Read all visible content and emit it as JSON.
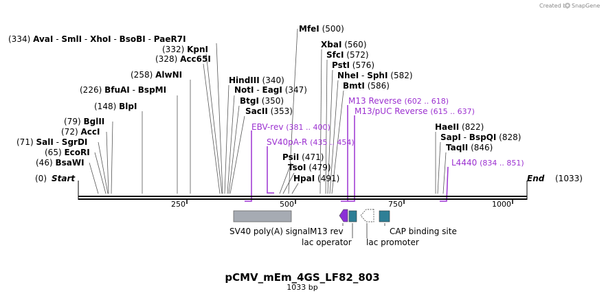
{
  "branding": {
    "created_by": "Created by",
    "app_name": "SnapGene"
  },
  "plasmid": {
    "name": "pCMV_mEm_4GS_LF82_803",
    "size_label": "1033 bp",
    "length_bp": 1033
  },
  "ends": {
    "start_label": "Start",
    "start_pos": "(0)",
    "end_label": "End",
    "end_pos": "(1033)"
  },
  "axis_ticks": [
    "250",
    "500",
    "750",
    "1000"
  ],
  "enzymes": {
    "bsawi": {
      "name": "BsaWI",
      "pos": "(46)"
    },
    "ecori": {
      "name": "EcoRI",
      "pos": "(65)"
    },
    "sali": {
      "name": "SalI",
      "pos": "(71)",
      "sep": "-",
      "name2": "SgrDI"
    },
    "acci": {
      "name": "AccI",
      "pos": "(72)"
    },
    "bglii": {
      "name": "BglII",
      "pos": "(79)"
    },
    "blpi": {
      "name": "BlpI",
      "pos": "(148)"
    },
    "bfuai": {
      "name": "BfuAI",
      "pos": "(226)",
      "sep": "-",
      "name2": "BspMI"
    },
    "alwni": {
      "name": "AlwNI",
      "pos": "(258)"
    },
    "acc65i": {
      "name": "Acc65I",
      "pos": "(328)"
    },
    "kpni": {
      "name": "KpnI",
      "pos": "(332)"
    },
    "avai": {
      "name": "AvaI",
      "pos": "(334)",
      "sep1": "-",
      "name2": "SmlI",
      "sep2": "-",
      "name3": "XhoI",
      "sep3": "-",
      "name4": "BsoBI",
      "sep4": "-",
      "name5": "PaeR7I"
    },
    "hindiii": {
      "name": "HindIII",
      "pos": "(340)"
    },
    "noti": {
      "name": "NotI",
      "sep": "-",
      "name2": "EagI",
      "pos": "(347)"
    },
    "btgi": {
      "name": "BtgI",
      "pos": "(350)"
    },
    "sacii": {
      "name": "SacII",
      "pos": "(353)"
    },
    "psii": {
      "name": "PsiI",
      "pos": "(471)"
    },
    "tsoi": {
      "name": "TsoI",
      "pos": "(479)"
    },
    "hpai": {
      "name": "HpaI",
      "pos": "(491)"
    },
    "mfei": {
      "name": "MfeI",
      "pos": "(500)"
    },
    "xbai": {
      "name": "XbaI",
      "pos": "(560)"
    },
    "sfci": {
      "name": "SfcI",
      "pos": "(572)"
    },
    "psti": {
      "name": "PstI",
      "pos": "(576)"
    },
    "nhei": {
      "name": "NheI",
      "sep": "-",
      "name2": "SphI",
      "pos": "(582)"
    },
    "bmti": {
      "name": "BmtI",
      "pos": "(586)"
    },
    "haeii": {
      "name": "HaeII",
      "pos": "(822)"
    },
    "sapi": {
      "name": "SapI",
      "sep": "-",
      "name2": "BspQI",
      "pos": "(828)"
    },
    "taqii": {
      "name": "TaqII",
      "pos": "(846)"
    }
  },
  "primers": {
    "ebv_rev": {
      "name": "EBV-rev",
      "range": "(381 .. 400)"
    },
    "sv40pa_r": {
      "name": "SV40pA-R",
      "range": "(435 .. 454)"
    },
    "m13_rev": {
      "name": "M13 Reverse",
      "range": "(602 .. 618)"
    },
    "m13_puc_rev": {
      "name": "M13/pUC Reverse",
      "range": "(615 .. 637)"
    },
    "l4440": {
      "name": "L4440",
      "range": "(834 .. 851)"
    }
  },
  "features": {
    "sv40_polya": "SV40 poly(A) signal",
    "m13_rev": "M13 rev",
    "lac_operator": "lac operator",
    "lac_promoter": "lac promoter",
    "cap_site": "CAP binding site"
  },
  "colors": {
    "backbone": "#000000",
    "primer": "#9b30d0",
    "sv40_feature": "#a6abb3",
    "teal_feature": "#2f7f96",
    "m13_feature": "#8b2fd6",
    "promoter_outline": "#555555"
  }
}
